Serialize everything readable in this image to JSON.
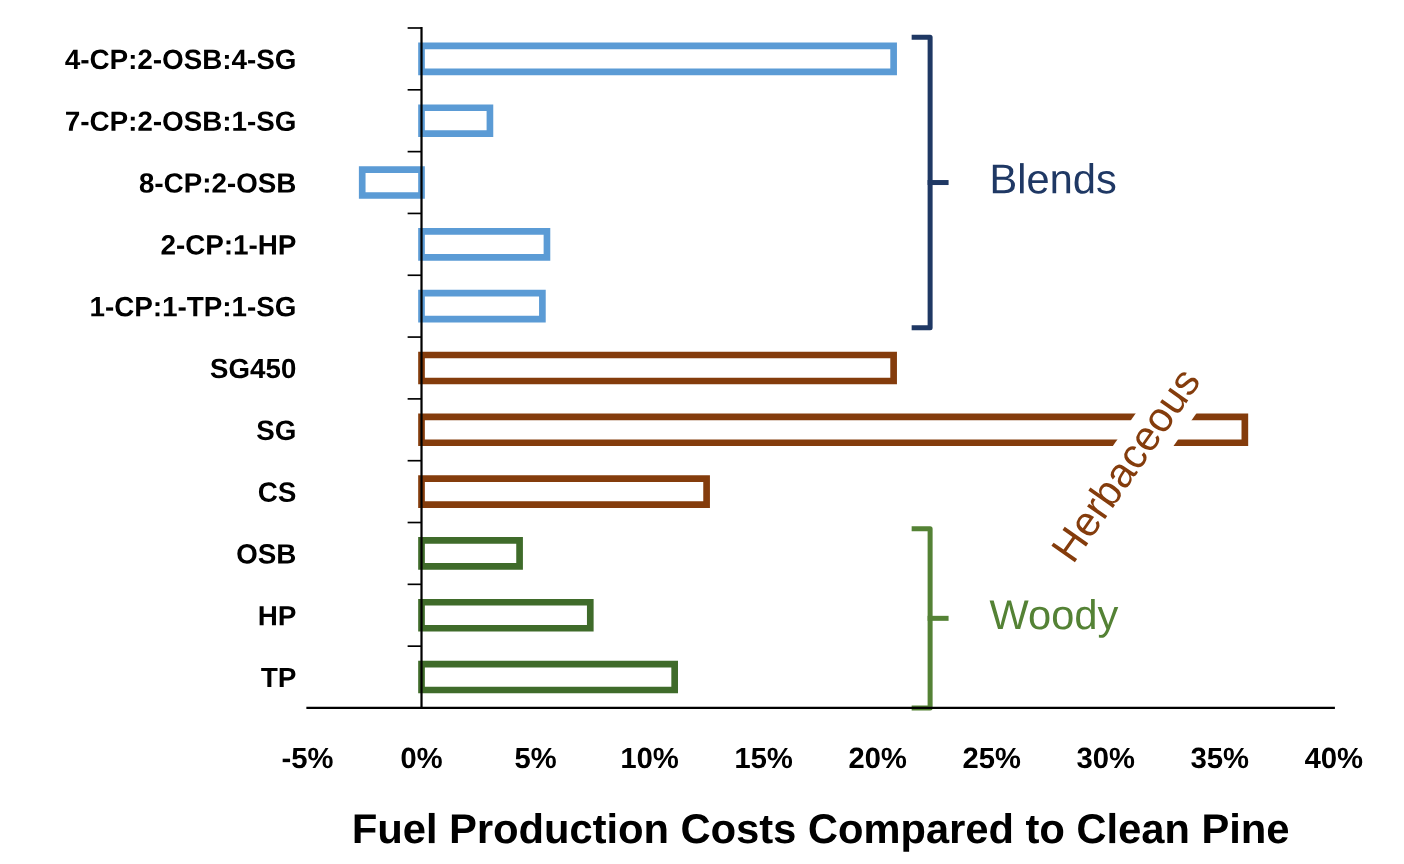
{
  "chart_data": {
    "type": "bar",
    "orientation": "horizontal",
    "xlabel": "Fuel Production Costs Compared to Clean Pine",
    "categories": [
      "4-CP:2-OSB:4-SG",
      "7-CP:2-OSB:1-SG",
      "8-CP:2-OSB",
      "2-CP:1-HP",
      "1-CP:1-TP:1-SG",
      "SG450",
      "SG",
      "CS",
      "OSB",
      "HP",
      "TP"
    ],
    "values": [
      20.7,
      3.0,
      -2.6,
      5.5,
      5.3,
      20.7,
      36.1,
      12.5,
      4.3,
      7.4,
      11.1
    ],
    "colors": [
      "#5b9bd5",
      "#5b9bd5",
      "#5b9bd5",
      "#5b9bd5",
      "#5b9bd5",
      "#843c0c",
      "#843c0c",
      "#843c0c",
      "#3f6b2a",
      "#3f6b2a",
      "#3f6b2a"
    ],
    "xlim": [
      -5,
      40
    ],
    "xticks": [
      {
        "value": -5,
        "label": "-5%"
      },
      {
        "value": 0,
        "label": "0%"
      },
      {
        "value": 5,
        "label": "5%"
      },
      {
        "value": 10,
        "label": "10%"
      },
      {
        "value": 15,
        "label": "15%"
      },
      {
        "value": 20,
        "label": "20%"
      },
      {
        "value": 25,
        "label": "25%"
      },
      {
        "value": 30,
        "label": "30%"
      },
      {
        "value": 35,
        "label": "35%"
      },
      {
        "value": 40,
        "label": "40%"
      }
    ],
    "annotations": [
      "Blends",
      "Herbaceous",
      "Woody"
    ]
  }
}
